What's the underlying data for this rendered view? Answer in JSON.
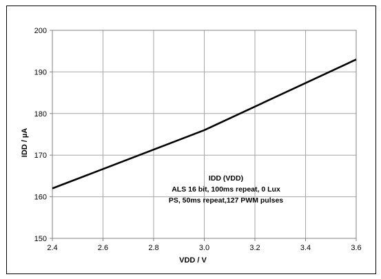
{
  "chart_data": {
    "type": "line",
    "title": "",
    "xlabel": "VDD / V",
    "ylabel": "IDD / µA",
    "xlim": [
      2.4,
      3.6
    ],
    "ylim": [
      150,
      200
    ],
    "x_ticks": [
      2.4,
      2.6,
      2.8,
      3.0,
      3.2,
      3.4,
      3.6
    ],
    "x_tick_labels": [
      "2.4",
      "2.6",
      "2.8",
      "3.0",
      "3.2",
      "3.4",
      "3.6"
    ],
    "y_ticks": [
      150,
      160,
      170,
      180,
      190,
      200
    ],
    "y_tick_labels": [
      "150",
      "160",
      "170",
      "180",
      "190",
      "200"
    ],
    "grid": true,
    "legend": "none",
    "series": [
      {
        "color": "#000000",
        "x": [
          2.4,
          3.0,
          3.6
        ],
        "y": [
          162,
          176,
          193
        ]
      }
    ],
    "annotation_lines": [
      "IDD (VDD)",
      "ALS 16 bit, 100ms repeat, 0 Lux",
      "PS, 50ms repeat,127 PWM pulses"
    ]
  }
}
